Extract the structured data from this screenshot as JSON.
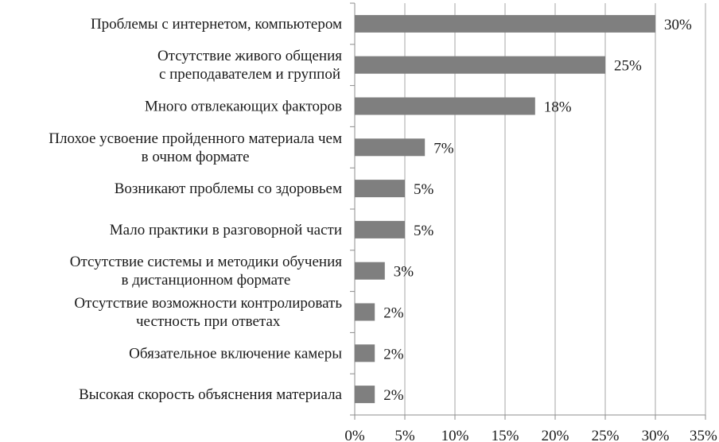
{
  "chart_data": {
    "type": "bar",
    "orientation": "horizontal",
    "categories": [
      [
        "Проблемы с интернетом, компьютером"
      ],
      [
        "Отсутствие живого общения",
        "с преподавателем и группой"
      ],
      [
        "Много отвлекающих факторов"
      ],
      [
        "Плохое усвоение пройденного материала чем",
        "в очном формате"
      ],
      [
        "Возникают проблемы со здоровьем"
      ],
      [
        "Мало практики в разговорной части"
      ],
      [
        "Отсутствие системы и методики обучения",
        "в дистанционном формате"
      ],
      [
        "Отсутствие возможности контролировать",
        "честность при ответах"
      ],
      [
        "Обязательное включение камеры"
      ],
      [
        "Высокая скорость объяснения материала"
      ]
    ],
    "values": [
      30,
      25,
      18,
      7,
      5,
      5,
      3,
      2,
      2,
      2
    ],
    "value_labels": [
      "30%",
      "25%",
      "18%",
      "7%",
      "5%",
      "5%",
      "3%",
      "2%",
      "2%",
      "2%"
    ],
    "xlim": [
      0,
      35
    ],
    "x_ticks": [
      0,
      5,
      10,
      15,
      20,
      25,
      30,
      35
    ],
    "x_tick_labels": [
      "0%",
      "5%",
      "10%",
      "15%",
      "20%",
      "25%",
      "30%",
      "35%"
    ],
    "grid": "vertical",
    "legend": "none",
    "bar_color": "#7f7f7f",
    "grid_color": "#a6a6a6",
    "title": "",
    "xlabel": "",
    "ylabel": ""
  }
}
